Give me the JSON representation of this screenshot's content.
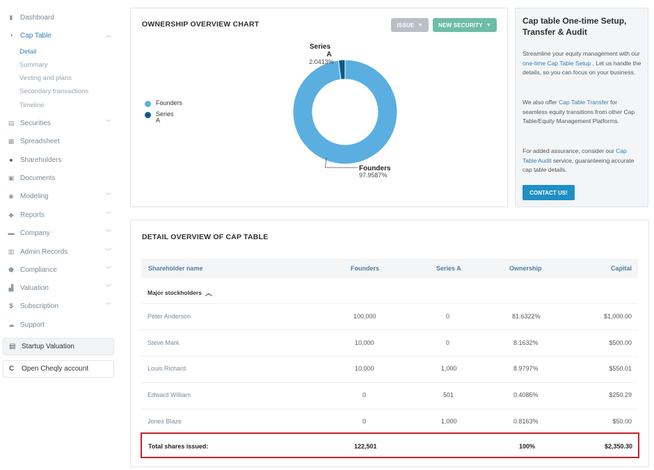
{
  "sidebar": {
    "items": [
      {
        "label": "Dashboard",
        "icon": "dashboard-icon"
      },
      {
        "label": "Cap Table",
        "icon": "pie-chart-icon"
      },
      {
        "label": "Securities",
        "icon": "clipboard-icon"
      },
      {
        "label": "Spreadsheet",
        "icon": "spreadsheet-icon"
      },
      {
        "label": "Shareholders",
        "icon": "user-icon"
      },
      {
        "label": "Documents",
        "icon": "documents-icon"
      },
      {
        "label": "Modeling",
        "icon": "lightbulb-icon"
      },
      {
        "label": "Reports",
        "icon": "tag-icon"
      },
      {
        "label": "Company",
        "icon": "briefcase-icon"
      },
      {
        "label": "Admin Records",
        "icon": "admin-icon"
      },
      {
        "label": "Compliance",
        "icon": "shield-icon"
      },
      {
        "label": "Valuation",
        "icon": "bar-chart-icon"
      },
      {
        "label": "Subscription",
        "icon": "dollar-icon"
      },
      {
        "label": "Support",
        "icon": "support-icon"
      }
    ],
    "cap_table_sub": [
      "Detail",
      "Summary",
      "Vesting and plans",
      "Secondary transactions",
      "Timeline"
    ],
    "startup_valuation": "Startup Valuation",
    "cheqly": "Open Cheqly account"
  },
  "chart_card": {
    "title": "OWNERSHIP OVERVIEW CHART",
    "issue_label": "ISSUE",
    "new_security_label": "NEW SECURITY"
  },
  "chart_data": {
    "type": "pie",
    "categories": [
      "Founders",
      "Series A"
    ],
    "values": [
      97.9587,
      2.0413
    ],
    "value_labels": [
      "97.9587%",
      "2.0413%"
    ],
    "colors": [
      "#5aafe0",
      "#0d5a8f"
    ],
    "legend_position": "left"
  },
  "info_card": {
    "title": "Cap table One-time Setup, Transfer & Audit",
    "p1_a": "Streamline your equity management with our ",
    "p1_link": "one-time Cap Table Setup",
    "p1_b": " . Let us handle the details, so you can focus on your business.",
    "p2_a": "We also offer ",
    "p2_link": "Cap Table Transfer",
    "p2_b": " for seamless equity transitions from other Cap Table/Equity Management Platforms.",
    "p3_a": "For added assurance, consider our ",
    "p3_link": "Cap Table Audit",
    "p3_b": " service, guaranteeing accurate cap table details.",
    "contact_label": "CONTACT US!"
  },
  "table_card": {
    "title": "DETAIL OVERVIEW OF CAP TABLE",
    "headers": [
      "Shareholder name",
      "Founders",
      "Series A",
      "Ownership",
      "Capital"
    ],
    "group_label": "Major stockholders",
    "rows": [
      {
        "name": "Peter Anderson",
        "founders": "100,000",
        "series_a": "0",
        "ownership": "81.6322%",
        "capital": "$1,000.00"
      },
      {
        "name": "Steve Mark",
        "founders": "10,000",
        "series_a": "0",
        "ownership": "8.1632%",
        "capital": "$500.00"
      },
      {
        "name": "Louis Richard",
        "founders": "10,000",
        "series_a": "1,000",
        "ownership": "8.9797%",
        "capital": "$550.01"
      },
      {
        "name": "Edward William",
        "founders": "0",
        "series_a": "501",
        "ownership": "0.4086%",
        "capital": "$250.29"
      },
      {
        "name": "Jones Blaze",
        "founders": "0",
        "series_a": "1,000",
        "ownership": "0.8163%",
        "capital": "$50.00"
      }
    ],
    "total": {
      "label": "Total shares issued:",
      "founders": "122,501",
      "ownership": "100%",
      "capital": "$2,350.30"
    }
  }
}
